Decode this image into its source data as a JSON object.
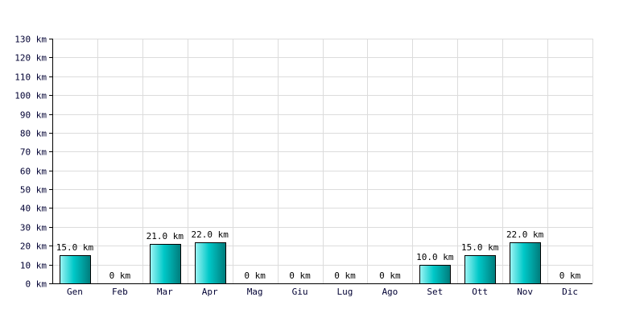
{
  "chart_data": {
    "type": "bar",
    "categories": [
      "Gen",
      "Feb",
      "Mar",
      "Apr",
      "Mag",
      "Giu",
      "Lug",
      "Ago",
      "Set",
      "Ott",
      "Nov",
      "Dic"
    ],
    "values": [
      15.0,
      0,
      21.0,
      22.0,
      0,
      0,
      0,
      0,
      10.0,
      15.0,
      22.0,
      0
    ],
    "data_labels": [
      "15.0 km",
      "0 km",
      "21.0 km",
      "22.0 km",
      "0 km",
      "0 km",
      "0 km",
      "0 km",
      "10.0 km",
      "15.0 km",
      "22.0 km",
      "0 km"
    ],
    "y_ticks": [
      0,
      10,
      20,
      30,
      40,
      50,
      60,
      70,
      80,
      90,
      100,
      110,
      120,
      130
    ],
    "y_tick_labels": [
      "0 km",
      "10 km",
      "20 km",
      "30 km",
      "40 km",
      "50 km",
      "60 km",
      "70 km",
      "80 km",
      "90 km",
      "100 km",
      "110 km",
      "120 km",
      "130 km"
    ],
    "ylim": [
      0,
      130
    ],
    "grid": true,
    "title": "",
    "xlabel": "",
    "ylabel": "",
    "colors": {
      "bar_light": "#9ff5f5",
      "bar_mid": "#00c8c8",
      "bar_dark": "#007b7b",
      "grid": "#dcdcdc",
      "axis": "#000000",
      "tick_text": "#000033"
    }
  }
}
